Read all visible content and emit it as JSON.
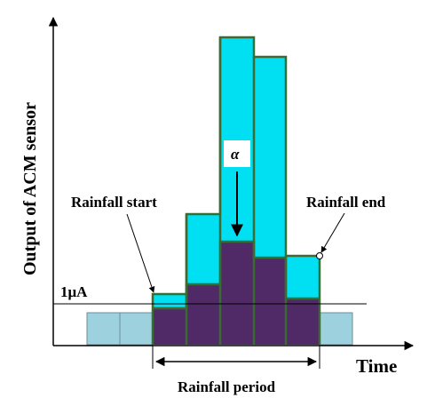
{
  "diagram": {
    "y_axis_label": "Output of ACM sensor",
    "x_axis_label": "Time",
    "threshold_label": "1μA",
    "rainfall_start_label": "Rainfall start",
    "rainfall_end_label": "Rainfall end",
    "rainfall_period_label": "Rainfall period",
    "alpha_label": "α",
    "colors": {
      "total_output": "#00e0f2",
      "dark_component": "#502a66",
      "baseline": "#9dd1de",
      "bar_outline": "#3a6b33",
      "axis": "#000000"
    }
  }
}
